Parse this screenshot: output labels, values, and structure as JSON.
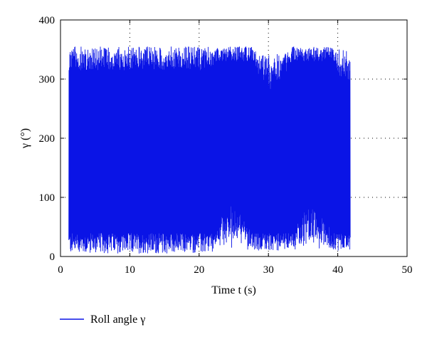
{
  "chart_data": {
    "type": "line",
    "xlabel": "Time t (s)",
    "ylabel": "γ (°)",
    "xlim": [
      0,
      50
    ],
    "ylim": [
      0,
      400
    ],
    "x_ticks": [
      0,
      10,
      20,
      30,
      40,
      50
    ],
    "y_ticks": [
      0,
      100,
      200,
      300,
      400
    ],
    "x_tick_labels": [
      "0",
      "10",
      "20",
      "30",
      "40",
      "50"
    ],
    "y_tick_labels": [
      "0",
      "100",
      "200",
      "300",
      "400"
    ],
    "grid": "dotted",
    "legend_position": "bottom",
    "series": [
      {
        "name": "Roll angle γ",
        "color": "#0a14e6",
        "description_of_behavior": "rapid oscillation between ~0 and ~360 degrees",
        "x_start": 1.2,
        "x_end": 41.8,
        "y_min": 0,
        "y_max": 360
      }
    ]
  }
}
